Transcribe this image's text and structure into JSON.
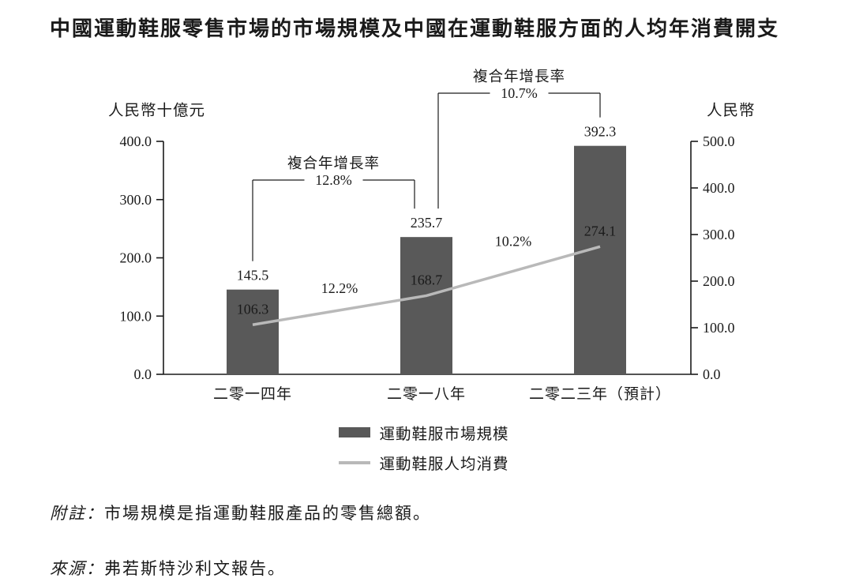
{
  "title": "中國運動鞋服零售市場的市場規模及中國在運動鞋服方面的人均年消費開支",
  "chart_data": {
    "type": "bar",
    "subtype": "bar-line-combo",
    "categories": [
      "二零一四年",
      "二零一八年",
      "二零二三年（預計）"
    ],
    "series": [
      {
        "name": "運動鞋服市場規模",
        "type": "bar",
        "axis": "left",
        "values": [
          145.5,
          235.7,
          392.3
        ]
      },
      {
        "name": "運動鞋服人均消費",
        "type": "line",
        "axis": "right",
        "values": [
          106.3,
          168.7,
          274.1
        ]
      }
    ],
    "left_axis": {
      "title": "人民幣十億元",
      "min": 0.0,
      "max": 400.0,
      "tick_step": 100.0,
      "tick_labels": [
        "0.0",
        "100.0",
        "200.0",
        "300.0",
        "400.0"
      ]
    },
    "right_axis": {
      "title": "人民幣",
      "min": 0.0,
      "max": 500.0,
      "tick_step": 100.0,
      "tick_labels": [
        "0.0",
        "100.0",
        "200.0",
        "300.0",
        "400.0",
        "500.0"
      ]
    },
    "annotations": {
      "cagr_title": "複合年增長率",
      "bar_cagr": [
        {
          "from": 0,
          "to": 1,
          "label": "12.8%"
        },
        {
          "from": 1,
          "to": 2,
          "label": "10.7%"
        }
      ],
      "line_growth": [
        {
          "from": 0,
          "to": 1,
          "label": "12.2%"
        },
        {
          "from": 1,
          "to": 2,
          "label": "10.2%"
        }
      ]
    },
    "grid": "off",
    "legend_position": "bottom",
    "colors": {
      "bar": "#595959",
      "line": "#b9b9b9",
      "bar_inner_text": "#ffffff",
      "axis": "#1a1a1a"
    }
  },
  "legend": [
    {
      "label": "運動鞋服市場規模",
      "swatch": "bar"
    },
    {
      "label": "運動鞋服人均消費",
      "swatch": "line"
    }
  ],
  "notes": [
    {
      "label": "附註：",
      "text": "市場規模是指運動鞋服產品的零售總額。"
    },
    {
      "label": "來源：",
      "text": "弗若斯特沙利文報告。"
    }
  ]
}
